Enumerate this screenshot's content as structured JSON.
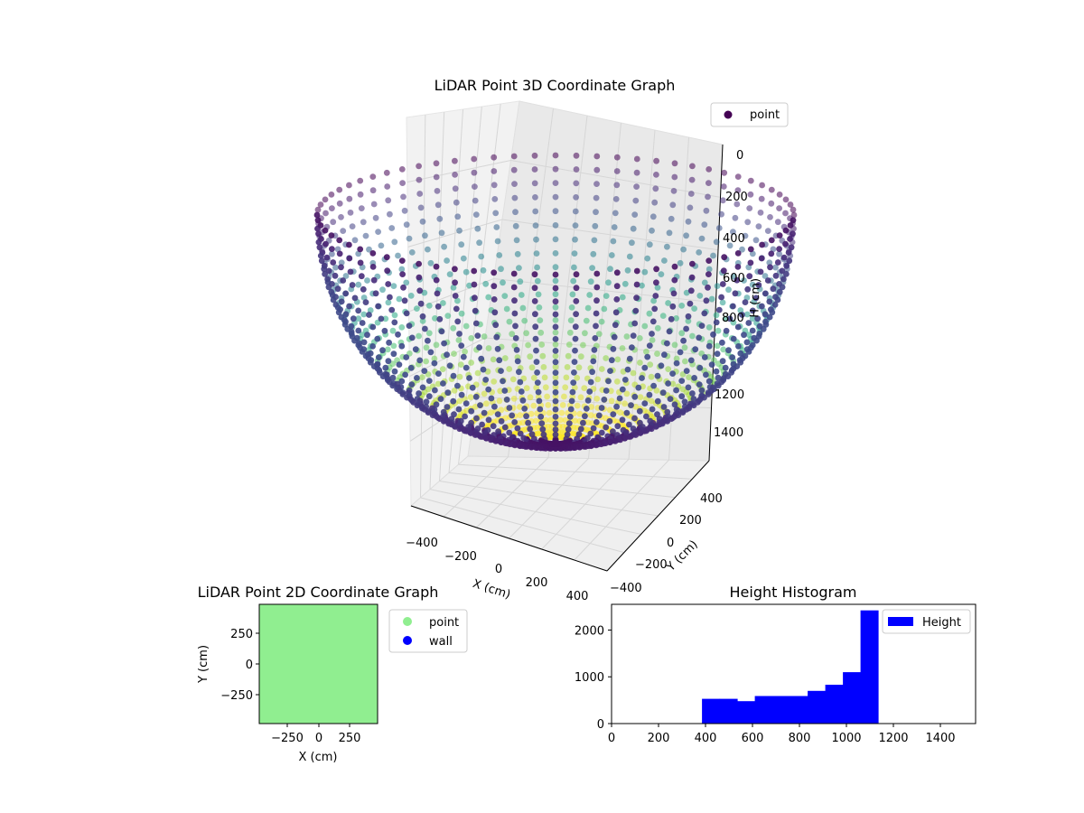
{
  "chart_data": [
    {
      "type": "scatter3d",
      "title": "LiDAR Point 3D Coordinate Graph",
      "xlabel": "X (cm)",
      "ylabel": "Y (cm)",
      "zlabel": "H (cm)",
      "xticks": [
        "−400",
        "−200",
        "0",
        "200",
        "400"
      ],
      "yticks": [
        "−400",
        "−200",
        "0",
        "200",
        "400"
      ],
      "zticks": [
        "0",
        "200",
        "400",
        "600",
        "800",
        "1200",
        "1400"
      ],
      "z_inverted": true,
      "xlim": [
        -500,
        500
      ],
      "ylim": [
        -500,
        500
      ],
      "zlim": [
        0,
        1500
      ],
      "colormap": "viridis",
      "legend": [
        {
          "label": "point",
          "color": "#440154"
        }
      ],
      "legend_position": "upper right",
      "series": [
        {
          "name": "point",
          "shape": "hemispherical bowl",
          "rim_radius": 480,
          "rim_height": 0,
          "bottom_height": 1150
        }
      ]
    },
    {
      "type": "scatter",
      "title": "LiDAR Point 2D Coordinate Graph",
      "xlabel": "X (cm)",
      "ylabel": "Y (cm)",
      "xticks": [
        "−250",
        "0",
        "250"
      ],
      "yticks": [
        "250",
        "0",
        "−250"
      ],
      "xlim": [
        -480,
        480
      ],
      "ylim": [
        -480,
        480
      ],
      "legend": [
        {
          "label": "point",
          "color": "#90ee90"
        },
        {
          "label": "wall",
          "color": "#0000ff"
        }
      ],
      "legend_position": "outside right",
      "fill_color": "#90ee90"
    },
    {
      "type": "bar",
      "title": "Height Histogram",
      "xlabel": "",
      "ylabel": "",
      "xticks": [
        "0",
        "200",
        "400",
        "600",
        "800",
        "1000",
        "1200",
        "1400"
      ],
      "yticks": [
        "0",
        "1000",
        "2000"
      ],
      "xlim": [
        0,
        1550
      ],
      "ylim": [
        0,
        2550
      ],
      "legend": [
        {
          "label": "Height",
          "color": "#0000ff"
        }
      ],
      "legend_position": "upper right",
      "bins": [
        {
          "x0": 385,
          "x1": 460,
          "value": 530
        },
        {
          "x0": 460,
          "x1": 535,
          "value": 530
        },
        {
          "x0": 535,
          "x1": 610,
          "value": 480
        },
        {
          "x0": 610,
          "x1": 685,
          "value": 590
        },
        {
          "x0": 685,
          "x1": 760,
          "value": 590
        },
        {
          "x0": 760,
          "x1": 835,
          "value": 590
        },
        {
          "x0": 835,
          "x1": 910,
          "value": 700
        },
        {
          "x0": 910,
          "x1": 985,
          "value": 830
        },
        {
          "x0": 985,
          "x1": 1060,
          "value": 1100
        },
        {
          "x0": 1060,
          "x1": 1135,
          "value": 2420
        }
      ]
    }
  ]
}
